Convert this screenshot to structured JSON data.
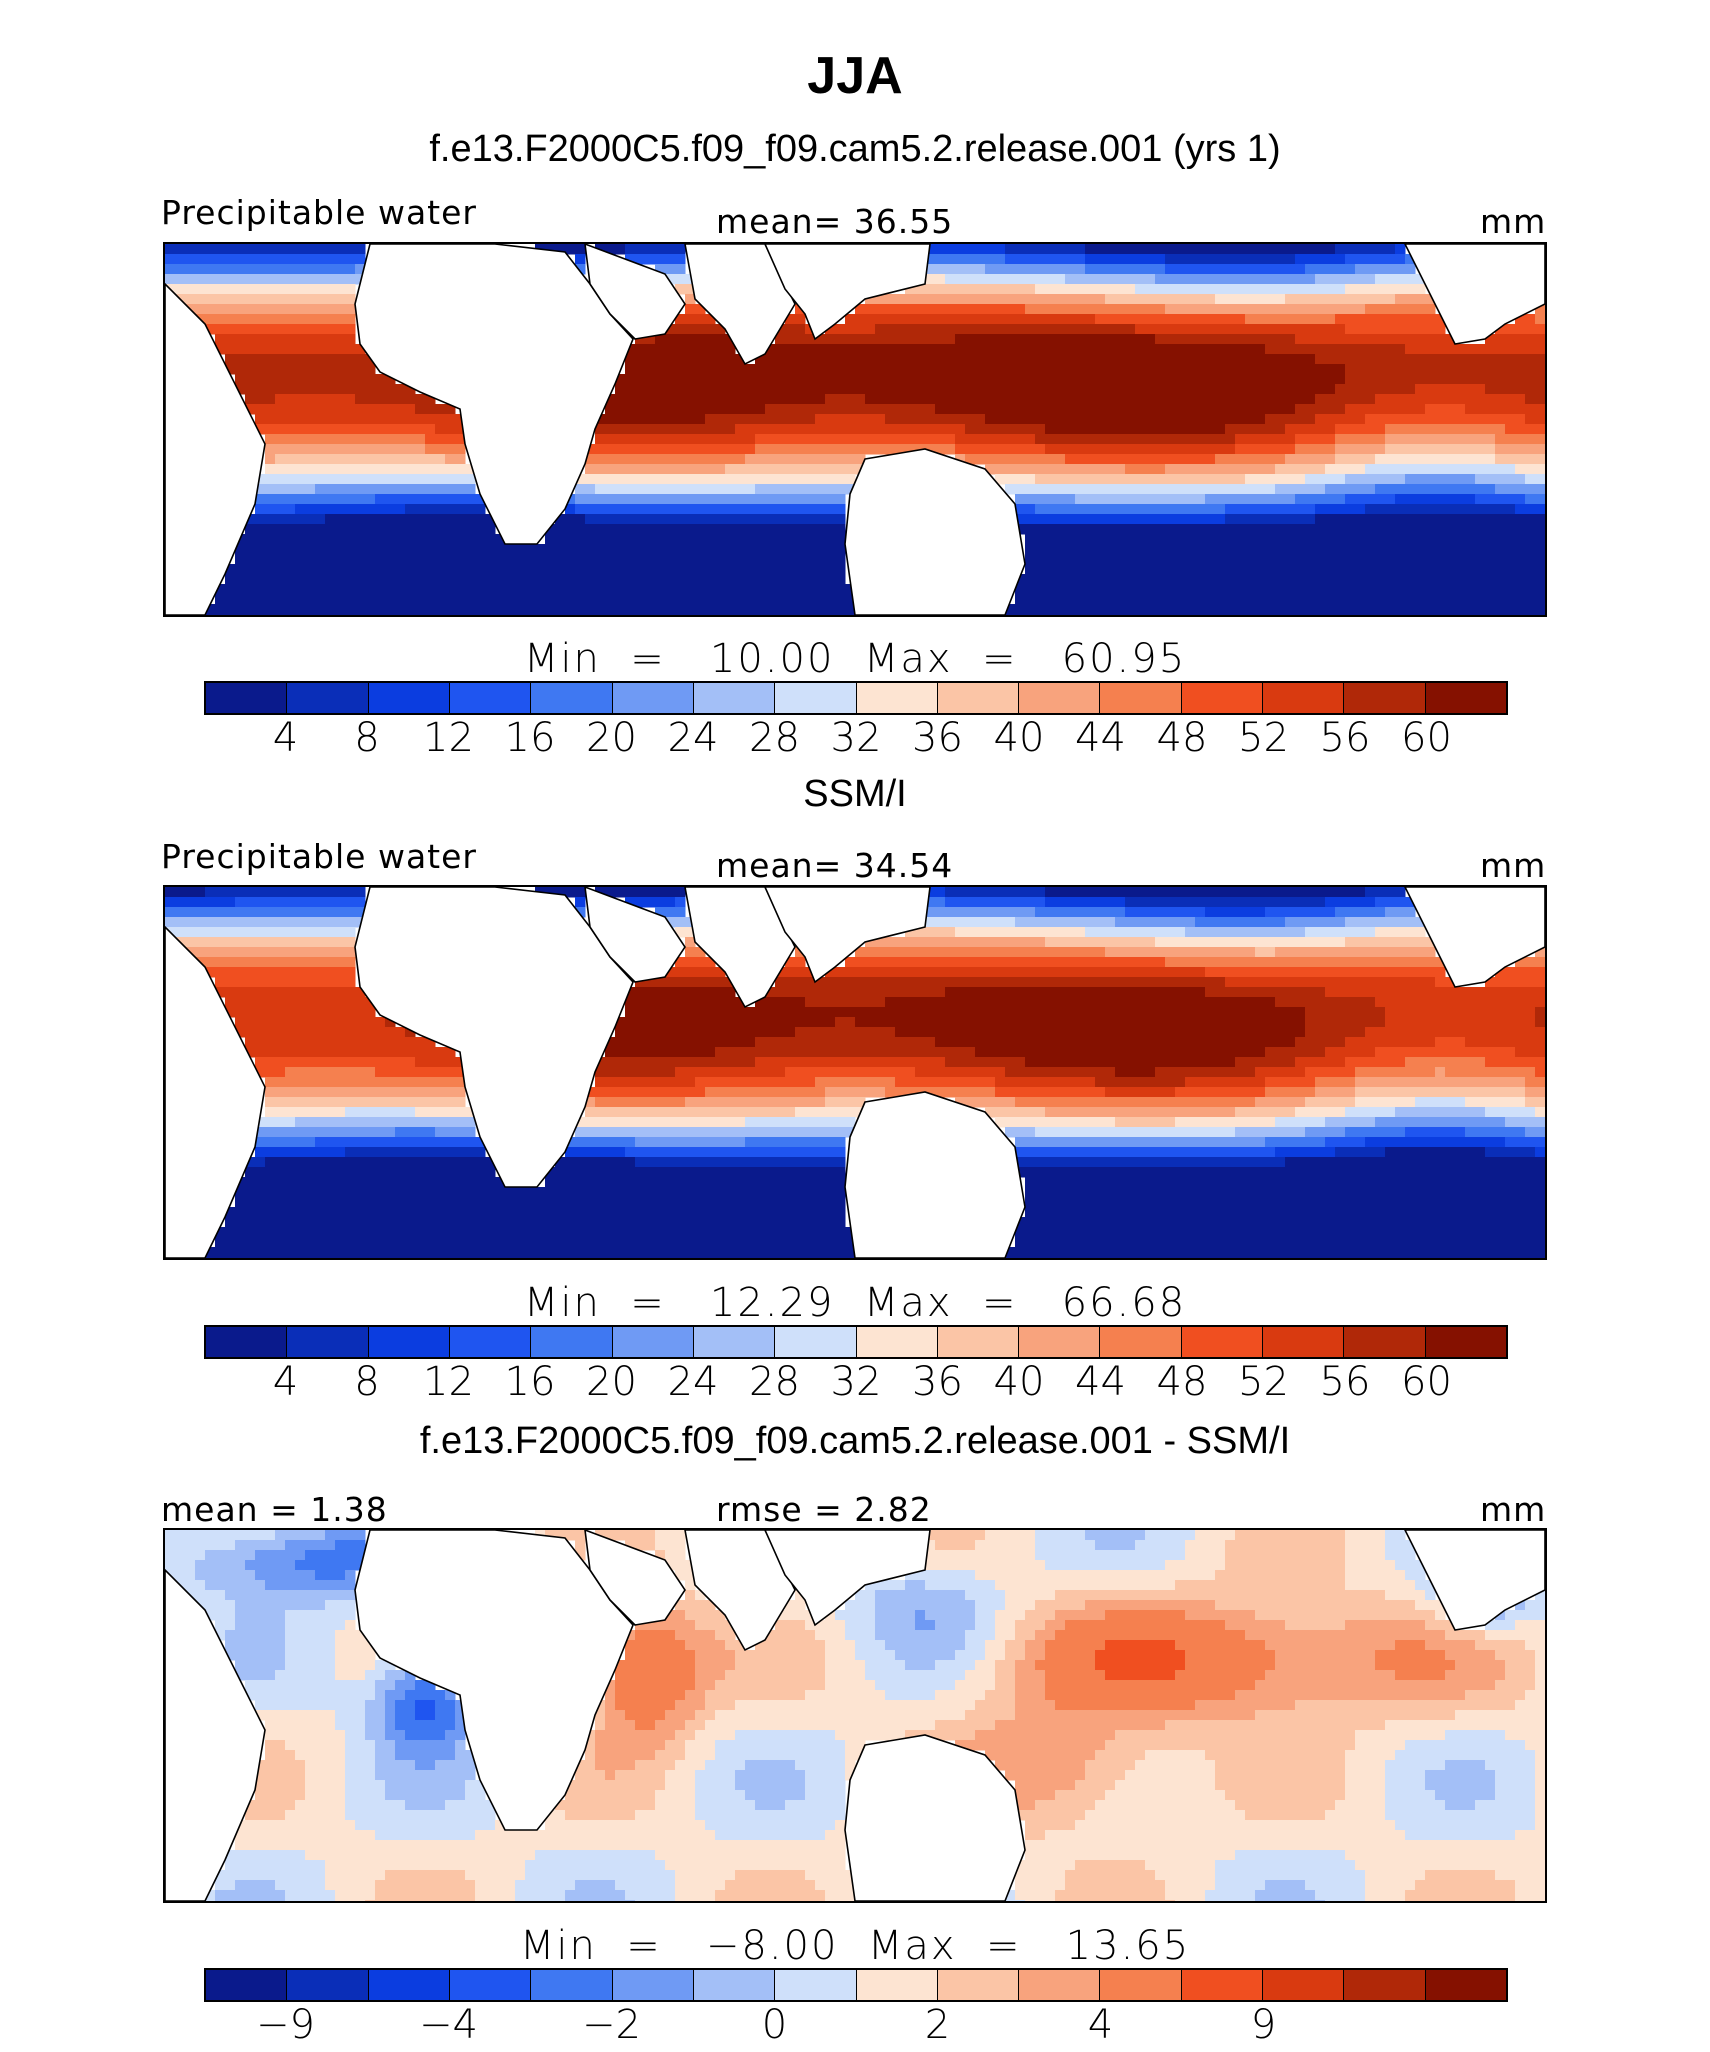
{
  "figure": {
    "season": "JJA"
  },
  "panels": [
    {
      "subtitle": "f.e13.F2000C5.f09_f09.cam5.2.release.001 (yrs 1)",
      "left_label": "Precipitable water",
      "center_label": "mean=   36.55",
      "units": "mm",
      "minmax": "Min  =   10.00  Max  =   60.95",
      "kind": "clim",
      "style": "model"
    },
    {
      "subtitle": "SSM/I",
      "left_label": "Precipitable water",
      "center_label": "mean=   34.54",
      "units": "mm",
      "minmax": "Min  =   12.29  Max  =   66.68",
      "kind": "clim",
      "style": "obs"
    },
    {
      "subtitle": "f.e13.F2000C5.f09_f09.cam5.2.release.001 - SSM/I",
      "left_label": "mean  =    1.38",
      "center_label": "rmse  =    2.82",
      "units": "mm",
      "minmax": "Min  =   −8.00  Max  =   13.65",
      "kind": "diff",
      "style": "diff"
    }
  ],
  "colorbars": {
    "clim": {
      "colors": [
        "#0a1a8c",
        "#0a2eb8",
        "#0b3de0",
        "#1f55f0",
        "#3f78f2",
        "#6f9af4",
        "#a3bff7",
        "#cfe0fa",
        "#fde4d2",
        "#fbc5a6",
        "#f8a37d",
        "#f5804f",
        "#f04f20",
        "#d93a10",
        "#b02808",
        "#851100"
      ],
      "ticks": [
        "4",
        "8",
        "12",
        "16",
        "20",
        "24",
        "28",
        "32",
        "36",
        "40",
        "44",
        "48",
        "52",
        "56",
        "60"
      ]
    },
    "diff": {
      "colors": [
        "#0a1a8c",
        "#0a2eb8",
        "#0b3de0",
        "#1f55f0",
        "#3f78f2",
        "#6f9af4",
        "#a3bff7",
        "#cfe0fa",
        "#fde4d2",
        "#fbc5a6",
        "#f8a37d",
        "#f5804f",
        "#f04f20",
        "#d93a10",
        "#b02808",
        "#851100"
      ],
      "ticks": [
        "−9",
        "−4",
        "−2",
        "0",
        "2",
        "4",
        "9"
      ],
      "tick_boundaries": [
        1,
        3,
        5,
        7,
        9,
        11,
        13
      ]
    }
  }
}
